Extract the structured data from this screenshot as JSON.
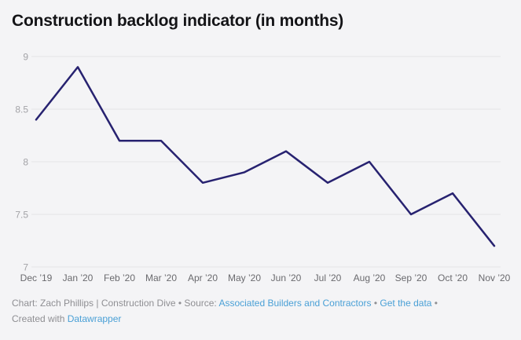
{
  "header": {
    "title": "Construction backlog indicator (in months)"
  },
  "chart_data": {
    "type": "line",
    "title": "Construction backlog indicator (in months)",
    "categories": [
      "Dec ’19",
      "Jan ’20",
      "Feb ’20",
      "Mar ’20",
      "Apr ’20",
      "May ’20",
      "Jun ’20",
      "Jul ’20",
      "Aug ’20",
      "Sep ’20",
      "Oct ’20",
      "Nov ’20"
    ],
    "values": [
      8.4,
      8.9,
      8.2,
      8.2,
      7.8,
      7.9,
      8.1,
      7.8,
      8.0,
      7.5,
      7.7,
      7.2
    ],
    "y_ticks": [
      "9",
      "8.5",
      "8",
      "7.5",
      "7"
    ],
    "ylim": [
      7,
      9
    ],
    "xlabel": "",
    "ylabel": "",
    "grid": true,
    "legend": "none",
    "line_color": "#272270"
  },
  "colors": {
    "background": "#f4f4f6",
    "line": "#272270",
    "link_blue": "#4aa0d6",
    "gridline": "#e3e3e6"
  },
  "footer": {
    "credit_prefix": "Chart: Zach Phillips | Construction Dive • Source: ",
    "source_link": "Associated Builders and Contractors",
    "sep1": " • ",
    "get_data_link": "Get the data",
    "sep2": " •",
    "created_with": "Created with ",
    "datawrapper_link": "Datawrapper"
  }
}
